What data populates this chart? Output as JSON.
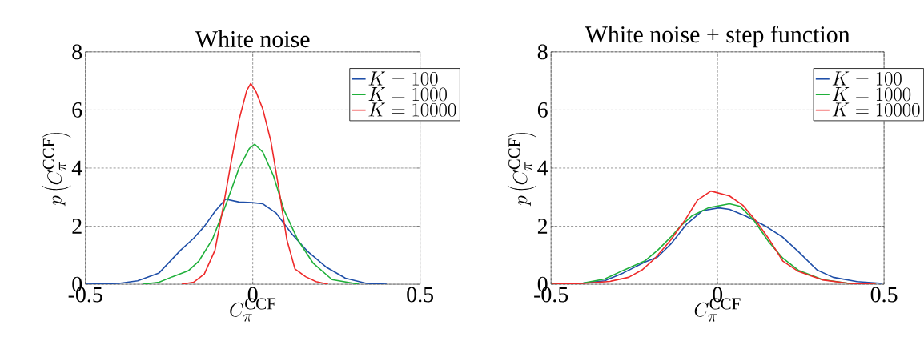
{
  "chart_data": [
    {
      "type": "line",
      "title": "White noise",
      "xlabel": "C_{\\pi}^{\\mathrm{CCF}}",
      "ylabel": "p\\left(C_{\\pi}^{\\mathrm{CCF}}\\right)",
      "xlim": [
        -0.5,
        0.5
      ],
      "ylim": [
        0,
        8
      ],
      "xticks": [
        -0.5,
        0,
        0.5
      ],
      "yticks": [
        0,
        2,
        4,
        6,
        8
      ],
      "grid": true,
      "legend": "top right",
      "line_style": "solid",
      "series": [
        {
          "name": "K = 100",
          "color": "#1f4fa8",
          "x": [
            -0.5,
            -0.4,
            -0.344,
            -0.28,
            -0.216,
            -0.177,
            -0.145,
            -0.111,
            -0.081,
            -0.041,
            -0.002,
            0.03,
            0.07,
            0.118,
            0.165,
            0.221,
            0.277,
            0.34,
            0.4
          ],
          "values": [
            0,
            0.03,
            0.12,
            0.39,
            1.17,
            1.58,
            1.99,
            2.54,
            2.93,
            2.83,
            2.81,
            2.77,
            2.45,
            1.72,
            1.12,
            0.58,
            0.21,
            0.03,
            0
          ]
        },
        {
          "name": "K = 1000",
          "color": "#1fb03a",
          "x": [
            -0.328,
            -0.28,
            -0.24,
            -0.193,
            -0.161,
            -0.121,
            -0.081,
            -0.041,
            -0.01,
            0.006,
            0.03,
            0.062,
            0.094,
            0.134,
            0.181,
            0.237,
            0.317
          ],
          "values": [
            0,
            0.07,
            0.26,
            0.46,
            0.8,
            1.54,
            2.72,
            4.0,
            4.68,
            4.82,
            4.55,
            3.73,
            2.54,
            1.54,
            0.72,
            0.16,
            0
          ]
        },
        {
          "name": "K = 10000",
          "color": "#ee2a2a",
          "x": [
            -0.212,
            -0.177,
            -0.145,
            -0.113,
            -0.089,
            -0.065,
            -0.041,
            -0.018,
            -0.006,
            0.01,
            0.03,
            0.054,
            0.078,
            0.102,
            0.126,
            0.158,
            0.189,
            0.225
          ],
          "values": [
            0,
            0.07,
            0.35,
            1.17,
            2.63,
            4.18,
            5.66,
            6.67,
            6.91,
            6.62,
            6.03,
            4.93,
            3.29,
            1.53,
            0.53,
            0.26,
            0.09,
            0
          ]
        }
      ]
    },
    {
      "type": "line",
      "title": "White noise + step function",
      "xlabel": "C_{\\pi}^{\\mathrm{CCF}}",
      "ylabel": "p\\left(C_{\\pi}^{\\mathrm{CCF}}\\right)",
      "xlim": [
        -0.5,
        0.5
      ],
      "ylim": [
        0,
        8
      ],
      "xticks": [
        -0.5,
        0,
        0.5
      ],
      "yticks": [
        0,
        2,
        4,
        6,
        8
      ],
      "grid": true,
      "legend": "top right",
      "line_style": "solid",
      "series": [
        {
          "name": "K = 100",
          "color": "#1f4fa8",
          "x": [
            -0.499,
            -0.403,
            -0.339,
            -0.283,
            -0.219,
            -0.18,
            -0.14,
            -0.092,
            -0.044,
            0.004,
            0.036,
            0.084,
            0.14,
            0.196,
            0.243,
            0.299,
            0.347,
            0.419,
            0.495
          ],
          "values": [
            0,
            0.04,
            0.12,
            0.39,
            0.76,
            0.94,
            1.39,
            2.08,
            2.54,
            2.63,
            2.58,
            2.35,
            2.03,
            1.62,
            1.12,
            0.49,
            0.24,
            0.09,
            0.03
          ]
        },
        {
          "name": "K = 1000",
          "color": "#1fb03a",
          "x": [
            -0.499,
            -0.403,
            -0.339,
            -0.283,
            -0.219,
            -0.18,
            -0.14,
            -0.108,
            -0.076,
            -0.028,
            0.036,
            0.068,
            0.108,
            0.155,
            0.196,
            0.243,
            0.315,
            0.395,
            0.475
          ],
          "values": [
            0,
            0.04,
            0.18,
            0.48,
            0.8,
            1.17,
            1.63,
            2.04,
            2.36,
            2.63,
            2.77,
            2.68,
            2.22,
            1.44,
            0.9,
            0.48,
            0.16,
            0.03,
            0
          ]
        },
        {
          "name": "K = 10000",
          "color": "#ee2a2a",
          "x": [
            -0.499,
            -0.403,
            -0.323,
            -0.267,
            -0.227,
            -0.188,
            -0.14,
            -0.1,
            -0.06,
            -0.02,
            0.036,
            0.076,
            0.116,
            0.156,
            0.196,
            0.243,
            0.315,
            0.395,
            0.475
          ],
          "values": [
            0,
            0.03,
            0.1,
            0.24,
            0.49,
            0.89,
            1.53,
            2.17,
            2.9,
            3.21,
            3.04,
            2.72,
            2.17,
            1.53,
            0.8,
            0.44,
            0.15,
            0.03,
            0
          ]
        }
      ]
    }
  ]
}
